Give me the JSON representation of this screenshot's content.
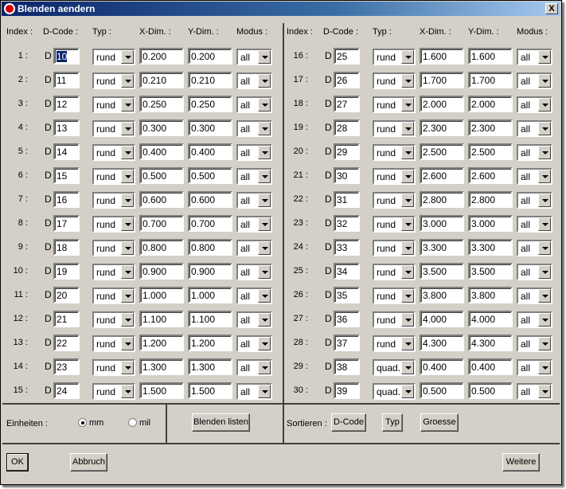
{
  "window": {
    "title": "Blenden aendern",
    "close_label": "X"
  },
  "headers": {
    "index": "Index :",
    "dcode": "D-Code :",
    "typ": "Typ :",
    "xdim": "X-Dim. :",
    "ydim": "Y-Dim. :",
    "modus": "Modus :"
  },
  "d_prefix": "D",
  "left_rows": [
    {
      "index": "1 :",
      "dcode": "10",
      "typ": "rund",
      "x": "0.200",
      "y": "0.200",
      "modus": "all"
    },
    {
      "index": "2 :",
      "dcode": "11",
      "typ": "rund",
      "x": "0.210",
      "y": "0.210",
      "modus": "all"
    },
    {
      "index": "3 :",
      "dcode": "12",
      "typ": "rund",
      "x": "0.250",
      "y": "0.250",
      "modus": "all"
    },
    {
      "index": "4 :",
      "dcode": "13",
      "typ": "rund",
      "x": "0.300",
      "y": "0.300",
      "modus": "all"
    },
    {
      "index": "5 :",
      "dcode": "14",
      "typ": "rund",
      "x": "0.400",
      "y": "0.400",
      "modus": "all"
    },
    {
      "index": "6 :",
      "dcode": "15",
      "typ": "rund",
      "x": "0.500",
      "y": "0.500",
      "modus": "all"
    },
    {
      "index": "7 :",
      "dcode": "16",
      "typ": "rund",
      "x": "0.600",
      "y": "0.600",
      "modus": "all"
    },
    {
      "index": "8 :",
      "dcode": "17",
      "typ": "rund",
      "x": "0.700",
      "y": "0.700",
      "modus": "all"
    },
    {
      "index": "9 :",
      "dcode": "18",
      "typ": "rund",
      "x": "0.800",
      "y": "0.800",
      "modus": "all"
    },
    {
      "index": "10 :",
      "dcode": "19",
      "typ": "rund",
      "x": "0.900",
      "y": "0.900",
      "modus": "all"
    },
    {
      "index": "11 :",
      "dcode": "20",
      "typ": "rund",
      "x": "1.000",
      "y": "1.000",
      "modus": "all"
    },
    {
      "index": "12 :",
      "dcode": "21",
      "typ": "rund",
      "x": "1.100",
      "y": "1.100",
      "modus": "all"
    },
    {
      "index": "13 :",
      "dcode": "22",
      "typ": "rund",
      "x": "1.200",
      "y": "1.200",
      "modus": "all"
    },
    {
      "index": "14 :",
      "dcode": "23",
      "typ": "rund",
      "x": "1.300",
      "y": "1.300",
      "modus": "all"
    },
    {
      "index": "15 :",
      "dcode": "24",
      "typ": "rund",
      "x": "1.500",
      "y": "1.500",
      "modus": "all"
    }
  ],
  "right_rows": [
    {
      "index": "16 :",
      "dcode": "25",
      "typ": "rund",
      "x": "1.600",
      "y": "1.600",
      "modus": "all"
    },
    {
      "index": "17 :",
      "dcode": "26",
      "typ": "rund",
      "x": "1.700",
      "y": "1.700",
      "modus": "all"
    },
    {
      "index": "18 :",
      "dcode": "27",
      "typ": "rund",
      "x": "2.000",
      "y": "2.000",
      "modus": "all"
    },
    {
      "index": "19 :",
      "dcode": "28",
      "typ": "rund",
      "x": "2.300",
      "y": "2.300",
      "modus": "all"
    },
    {
      "index": "20 :",
      "dcode": "29",
      "typ": "rund",
      "x": "2.500",
      "y": "2.500",
      "modus": "all"
    },
    {
      "index": "21 :",
      "dcode": "30",
      "typ": "rund",
      "x": "2.600",
      "y": "2.600",
      "modus": "all"
    },
    {
      "index": "22 :",
      "dcode": "31",
      "typ": "rund",
      "x": "2.800",
      "y": "2.800",
      "modus": "all"
    },
    {
      "index": "23 :",
      "dcode": "32",
      "typ": "rund",
      "x": "3.000",
      "y": "3.000",
      "modus": "all"
    },
    {
      "index": "24 :",
      "dcode": "33",
      "typ": "rund",
      "x": "3.300",
      "y": "3.300",
      "modus": "all"
    },
    {
      "index": "25 :",
      "dcode": "34",
      "typ": "rund",
      "x": "3.500",
      "y": "3.500",
      "modus": "all"
    },
    {
      "index": "26 :",
      "dcode": "35",
      "typ": "rund",
      "x": "3.800",
      "y": "3.800",
      "modus": "all"
    },
    {
      "index": "27 :",
      "dcode": "36",
      "typ": "rund",
      "x": "4.000",
      "y": "4.000",
      "modus": "all"
    },
    {
      "index": "28 :",
      "dcode": "37",
      "typ": "rund",
      "x": "4.300",
      "y": "4.300",
      "modus": "all"
    },
    {
      "index": "29 :",
      "dcode": "38",
      "typ": "quad.",
      "x": "0.400",
      "y": "0.400",
      "modus": "all"
    },
    {
      "index": "30 :",
      "dcode": "39",
      "typ": "quad.",
      "x": "0.500",
      "y": "0.500",
      "modus": "all"
    }
  ],
  "units": {
    "label": "Einheiten :",
    "mm": "mm",
    "mil": "mil",
    "selected": "mm"
  },
  "list_button": "Blenden listen",
  "sort": {
    "label": "Sortieren :",
    "dcode": "D-Code",
    "typ": "Typ",
    "groesse": "Groesse"
  },
  "buttons": {
    "ok": "OK",
    "cancel": "Abbruch",
    "more": "Weitere"
  }
}
